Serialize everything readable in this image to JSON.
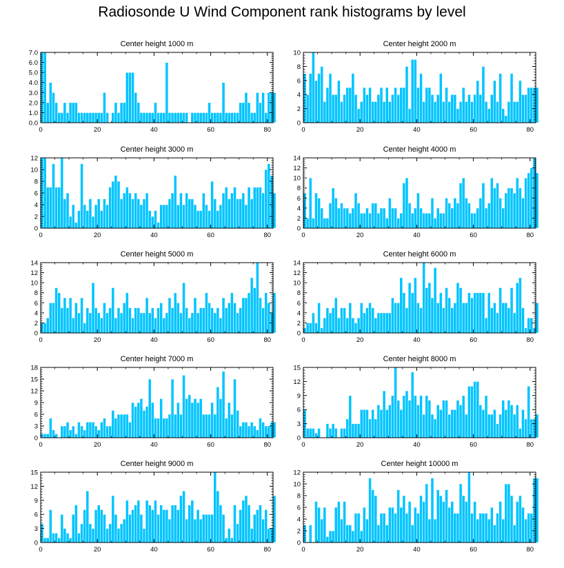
{
  "title": "Radiosonde U Wind Component rank histograms by level",
  "colors": {
    "bar": "#00c4ff",
    "bar_edge": "#ffffff",
    "axis": "#000000",
    "text": "#000000"
  },
  "chart_data": [
    {
      "type": "bar",
      "title": "Center height 1000 m",
      "xlim": [
        0,
        82
      ],
      "xticks": [
        0,
        20,
        40,
        60,
        80
      ],
      "ylim": [
        0,
        7
      ],
      "yticks": [
        0,
        1,
        2,
        3,
        4,
        5,
        6,
        7
      ],
      "ytick_labels": [
        "0.0",
        "1.0",
        "2.0",
        "3.0",
        "4.0",
        "5.0",
        "6.0",
        "7.0"
      ],
      "values": [
        7,
        7,
        2,
        4,
        3,
        2,
        1,
        1,
        2,
        1,
        2,
        2,
        2,
        1,
        1,
        1,
        1,
        1,
        1,
        1,
        1,
        1,
        3,
        1,
        0,
        1,
        2,
        1,
        2,
        2,
        5,
        5,
        5,
        3,
        2,
        1,
        1,
        1,
        1,
        1,
        2,
        1,
        1,
        1,
        6,
        1,
        1,
        1,
        1,
        1,
        1,
        1,
        0,
        1,
        1,
        1,
        1,
        1,
        1,
        2,
        1,
        1,
        1,
        1,
        4,
        1,
        1,
        1,
        1,
        1,
        2,
        2,
        3,
        2,
        1,
        1,
        3,
        2,
        3,
        1,
        3,
        3,
        3
      ]
    },
    {
      "type": "bar",
      "title": "Center height 2000 m",
      "xlim": [
        0,
        82
      ],
      "xticks": [
        0,
        20,
        40,
        60,
        80
      ],
      "ylim": [
        0,
        10
      ],
      "yticks": [
        0,
        2,
        4,
        6,
        8,
        10
      ],
      "ytick_labels": [
        "0",
        "2",
        "4",
        "6",
        "8",
        "10"
      ],
      "values": [
        7,
        4,
        7,
        10,
        6,
        7,
        8,
        3,
        5,
        7,
        4,
        4,
        6,
        3,
        4,
        5,
        5,
        7,
        4,
        2,
        3,
        5,
        4,
        5,
        3,
        3,
        4,
        5,
        3,
        5,
        3,
        4,
        5,
        4,
        5,
        5,
        8,
        2,
        9,
        9,
        5,
        7,
        3,
        5,
        5,
        4,
        3,
        4,
        7,
        3,
        5,
        3,
        4,
        4,
        2,
        3,
        5,
        3,
        4,
        3,
        4,
        6,
        4,
        8,
        3,
        2,
        4,
        6,
        3,
        7,
        2,
        1,
        3,
        7,
        3,
        3,
        6,
        4,
        4,
        5,
        5,
        5,
        5
      ]
    },
    {
      "type": "bar",
      "title": "Center height 3000 m",
      "xlim": [
        0,
        82
      ],
      "xticks": [
        0,
        20,
        40,
        60,
        80
      ],
      "ylim": [
        0,
        12
      ],
      "yticks": [
        0,
        2,
        4,
        6,
        8,
        10,
        12
      ],
      "ytick_labels": [
        "0",
        "2",
        "4",
        "6",
        "8",
        "10",
        "12"
      ],
      "values": [
        12,
        12,
        7,
        7,
        11,
        7,
        7,
        12,
        5,
        6,
        2,
        4,
        1,
        3,
        11,
        4,
        3,
        5,
        2,
        4,
        5,
        3,
        5,
        4,
        7,
        8,
        9,
        8,
        5,
        6,
        7,
        6,
        5,
        6,
        5,
        4,
        5,
        6,
        3,
        2,
        3,
        1,
        4,
        4,
        4,
        5,
        6,
        9,
        4,
        6,
        4,
        6,
        5,
        5,
        4,
        3,
        3,
        6,
        4,
        3,
        8,
        5,
        3,
        4,
        6,
        7,
        5,
        6,
        7,
        5,
        5,
        6,
        4,
        7,
        5,
        7,
        7,
        7,
        6,
        10,
        11,
        9,
        6
      ]
    },
    {
      "type": "bar",
      "title": "Center height 4000 m",
      "xlim": [
        0,
        82
      ],
      "xticks": [
        0,
        20,
        40,
        60,
        80
      ],
      "ylim": [
        0,
        14
      ],
      "yticks": [
        0,
        2,
        4,
        6,
        8,
        10,
        12,
        14
      ],
      "ytick_labels": [
        "0",
        "2",
        "4",
        "6",
        "8",
        "10",
        "12",
        "14"
      ],
      "values": [
        7,
        2,
        10,
        2,
        7,
        6,
        4,
        2,
        2,
        5,
        8,
        6,
        4,
        5,
        4,
        4,
        3,
        4,
        7,
        5,
        3,
        3,
        4,
        3,
        5,
        5,
        3,
        4,
        4,
        2,
        6,
        4,
        4,
        2,
        3,
        9,
        10,
        5,
        3,
        4,
        7,
        4,
        3,
        3,
        3,
        6,
        2,
        4,
        3,
        3,
        6,
        5,
        4,
        6,
        5,
        9,
        10,
        6,
        5,
        3,
        3,
        4,
        6,
        9,
        4,
        5,
        10,
        8,
        9,
        6,
        4,
        7,
        8,
        8,
        7,
        10,
        8,
        6,
        10,
        11,
        12,
        14,
        11
      ]
    },
    {
      "type": "bar",
      "title": "Center height 5000 m",
      "xlim": [
        0,
        82
      ],
      "xticks": [
        0,
        20,
        40,
        60,
        80
      ],
      "ylim": [
        0,
        14
      ],
      "yticks": [
        0,
        2,
        4,
        6,
        8,
        10,
        12,
        14
      ],
      "ytick_labels": [
        "0",
        "2",
        "4",
        "6",
        "8",
        "10",
        "12",
        "14"
      ],
      "values": [
        2,
        2,
        3,
        6,
        6,
        9,
        8,
        5,
        7,
        5,
        7,
        3,
        6,
        4,
        7,
        2,
        5,
        4,
        10,
        5,
        4,
        3,
        6,
        4,
        5,
        9,
        3,
        5,
        4,
        6,
        8,
        5,
        3,
        5,
        5,
        4,
        4,
        7,
        4,
        5,
        3,
        5,
        6,
        3,
        4,
        7,
        5,
        8,
        6,
        4,
        10,
        5,
        3,
        4,
        7,
        4,
        5,
        5,
        8,
        6,
        5,
        4,
        5,
        3,
        7,
        5,
        6,
        8,
        6,
        4,
        5,
        7,
        7,
        8,
        11,
        9,
        14,
        7,
        5,
        8,
        6,
        4,
        8
      ]
    },
    {
      "type": "bar",
      "title": "Center height 6000 m",
      "xlim": [
        0,
        82
      ],
      "xticks": [
        0,
        20,
        40,
        60,
        80
      ],
      "ylim": [
        0,
        14
      ],
      "yticks": [
        0,
        2,
        4,
        6,
        8,
        10,
        12,
        14
      ],
      "ytick_labels": [
        "0",
        "2",
        "4",
        "6",
        "8",
        "10",
        "12",
        "14"
      ],
      "values": [
        1,
        2,
        2,
        4,
        2,
        6,
        1,
        3,
        5,
        4,
        5,
        7,
        3,
        5,
        5,
        3,
        6,
        3,
        2,
        3,
        6,
        4,
        5,
        6,
        5,
        3,
        4,
        4,
        4,
        4,
        4,
        7,
        6,
        6,
        11,
        8,
        5,
        10,
        8,
        11,
        6,
        5,
        14,
        9,
        10,
        7,
        13,
        6,
        8,
        5,
        9,
        7,
        5,
        6,
        10,
        9,
        6,
        6,
        8,
        7,
        8,
        8,
        8,
        8,
        3,
        8,
        5,
        6,
        4,
        9,
        6,
        6,
        5,
        9,
        4,
        10,
        11,
        5,
        1,
        3,
        3,
        1,
        6
      ]
    },
    {
      "type": "bar",
      "title": "Center height 7000 m",
      "xlim": [
        0,
        82
      ],
      "xticks": [
        0,
        20,
        40,
        60,
        80
      ],
      "ylim": [
        0,
        18
      ],
      "yticks": [
        0,
        3,
        6,
        9,
        12,
        15,
        18
      ],
      "ytick_labels": [
        "0",
        "3",
        "6",
        "9",
        "12",
        "15",
        "18"
      ],
      "values": [
        1,
        1,
        1,
        5,
        2,
        1,
        0,
        3,
        3,
        4,
        2,
        3,
        1,
        4,
        3,
        2,
        4,
        4,
        4,
        3,
        2,
        4,
        5,
        3,
        3,
        7,
        5,
        6,
        6,
        6,
        6,
        4,
        9,
        8,
        9,
        10,
        7,
        8,
        15,
        9,
        5,
        5,
        10,
        5,
        5,
        6,
        15,
        6,
        9,
        6,
        16,
        10,
        11,
        9,
        10,
        9,
        10,
        6,
        6,
        6,
        9,
        6,
        13,
        10,
        17,
        5,
        9,
        6,
        15,
        7,
        3,
        4,
        4,
        3,
        4,
        3,
        2,
        5,
        4,
        3,
        3,
        4,
        4
      ]
    },
    {
      "type": "bar",
      "title": "Center height 8000 m",
      "xlim": [
        0,
        82
      ],
      "xticks": [
        0,
        20,
        40,
        60,
        80
      ],
      "ylim": [
        0,
        15
      ],
      "yticks": [
        0,
        3,
        6,
        9,
        12,
        15
      ],
      "ytick_labels": [
        "0",
        "3",
        "6",
        "9",
        "12",
        "15"
      ],
      "values": [
        6,
        2,
        2,
        2,
        1,
        2,
        0,
        0,
        3,
        2,
        3,
        2,
        0,
        2,
        2,
        4,
        9,
        3,
        3,
        3,
        6,
        6,
        6,
        4,
        6,
        4,
        7,
        6,
        10,
        6,
        7,
        9,
        15,
        8,
        6,
        9,
        10,
        8,
        14,
        9,
        7,
        9,
        5,
        9,
        8,
        5,
        4,
        7,
        6,
        8,
        8,
        5,
        6,
        6,
        8,
        7,
        9,
        5,
        11,
        11,
        12,
        12,
        7,
        6,
        9,
        5,
        5,
        6,
        3,
        5,
        8,
        6,
        8,
        7,
        5,
        7,
        2,
        6,
        4,
        11,
        4,
        4,
        5
      ]
    },
    {
      "type": "bar",
      "title": "Center height 9000 m",
      "xlim": [
        0,
        82
      ],
      "xticks": [
        0,
        20,
        40,
        60,
        80
      ],
      "ylim": [
        0,
        15
      ],
      "yticks": [
        0,
        3,
        6,
        9,
        12,
        15
      ],
      "ytick_labels": [
        "0",
        "3",
        "6",
        "9",
        "12",
        "15"
      ],
      "values": [
        4,
        1,
        1,
        7,
        2,
        2,
        1,
        6,
        3,
        2,
        1,
        6,
        8,
        2,
        4,
        7,
        11,
        4,
        3,
        7,
        8,
        7,
        6,
        3,
        4,
        10,
        6,
        3,
        4,
        5,
        9,
        6,
        7,
        8,
        9,
        6,
        3,
        9,
        8,
        7,
        9,
        6,
        8,
        7,
        7,
        5,
        8,
        8,
        7,
        10,
        11,
        5,
        8,
        9,
        5,
        7,
        5,
        6,
        6,
        6,
        6,
        15,
        11,
        8,
        6,
        1,
        3,
        1,
        8,
        4,
        7,
        9,
        10,
        8,
        3,
        6,
        7,
        8,
        5,
        7,
        3,
        3,
        10
      ]
    },
    {
      "type": "bar",
      "title": "Center height 10000 m",
      "xlim": [
        0,
        82
      ],
      "xticks": [
        0,
        20,
        40,
        60,
        80
      ],
      "ylim": [
        0,
        12
      ],
      "yticks": [
        0,
        2,
        4,
        6,
        8,
        10,
        12
      ],
      "ytick_labels": [
        "0",
        "2",
        "4",
        "6",
        "8",
        "10",
        "12"
      ],
      "values": [
        3,
        0,
        3,
        0,
        7,
        6,
        4,
        6,
        1,
        2,
        2,
        6,
        7,
        4,
        7,
        3,
        3,
        2,
        5,
        5,
        2,
        6,
        4,
        11,
        9,
        8,
        3,
        5,
        5,
        3,
        6,
        6,
        5,
        9,
        6,
        8,
        5,
        7,
        3,
        6,
        5,
        8,
        7,
        10,
        4,
        11,
        4,
        9,
        8,
        7,
        9,
        6,
        7,
        5,
        5,
        10,
        8,
        7,
        12,
        5,
        7,
        4,
        5,
        5,
        5,
        4,
        6,
        3,
        5,
        7,
        4,
        10,
        10,
        8,
        3,
        7,
        8,
        6,
        4,
        5,
        5,
        11,
        11
      ]
    }
  ]
}
